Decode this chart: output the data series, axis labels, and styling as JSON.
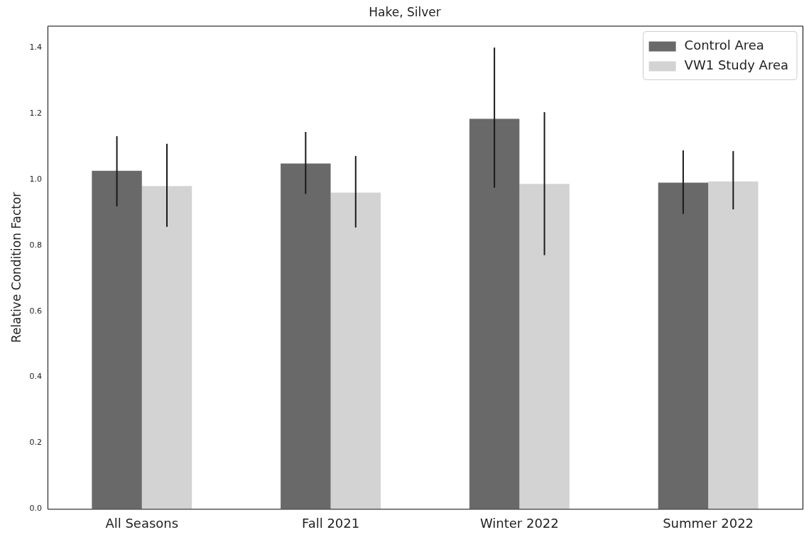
{
  "chart_data": {
    "type": "bar",
    "title": "Hake, Silver",
    "ylabel": "Relative Condition Factor",
    "categories": [
      "All Seasons",
      "Fall 2021",
      "Winter 2022",
      "Summer 2022"
    ],
    "series": [
      {
        "name": "Control Area",
        "color": "#696969",
        "values": [
          1.026,
          1.048,
          1.184,
          0.99
        ],
        "errors": [
          [
            0.918,
            1.131
          ],
          [
            0.956,
            1.144
          ],
          [
            0.975,
            1.4
          ],
          [
            0.895,
            1.088
          ]
        ]
      },
      {
        "name": "VW1 Study Area",
        "color": "#d3d3d3",
        "values": [
          0.98,
          0.96,
          0.986,
          0.994
        ],
        "errors": [
          [
            0.856,
            1.108
          ],
          [
            0.854,
            1.071
          ],
          [
            0.77,
            1.204
          ],
          [
            0.909,
            1.086
          ]
        ]
      }
    ],
    "ylim": [
      0,
      1.466
    ],
    "yticks": [
      {
        "value": 0,
        "label": "0.0"
      },
      0.2,
      0.4,
      0.6,
      0.8,
      {
        "value": 1,
        "label": "1.0"
      },
      1.2,
      1.4
    ],
    "grid": false,
    "legend": "top right"
  }
}
